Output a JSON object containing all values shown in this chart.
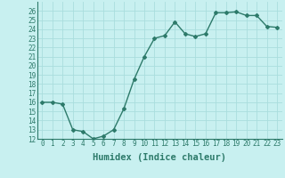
{
  "x": [
    0,
    1,
    2,
    3,
    4,
    5,
    6,
    7,
    8,
    9,
    10,
    11,
    12,
    13,
    14,
    15,
    16,
    17,
    18,
    19,
    20,
    21,
    22,
    23
  ],
  "y": [
    16.0,
    16.0,
    15.8,
    13.0,
    12.8,
    12.0,
    12.3,
    13.0,
    15.3,
    18.5,
    21.0,
    23.0,
    23.3,
    24.8,
    23.5,
    23.2,
    23.5,
    25.8,
    25.8,
    25.9,
    25.5,
    25.5,
    24.3,
    24.2
  ],
  "xlabel": "Humidex (Indice chaleur)",
  "ylim": [
    12,
    27
  ],
  "xlim": [
    -0.5,
    23.5
  ],
  "yticks": [
    12,
    13,
    14,
    15,
    16,
    17,
    18,
    19,
    20,
    21,
    22,
    23,
    24,
    25,
    26
  ],
  "xtick_labels": [
    "0",
    "1",
    "2",
    "3",
    "4",
    "5",
    "6",
    "7",
    "8",
    "9",
    "10",
    "11",
    "12",
    "13",
    "14",
    "15",
    "16",
    "17",
    "18",
    "19",
    "20",
    "21",
    "22",
    "23"
  ],
  "line_color": "#2d7a6a",
  "marker": "D",
  "marker_size": 2.0,
  "bg_color": "#c8f0f0",
  "grid_color": "#aadddd",
  "line_width": 1.0,
  "tick_fontsize": 5.5,
  "xlabel_fontsize": 7.5
}
